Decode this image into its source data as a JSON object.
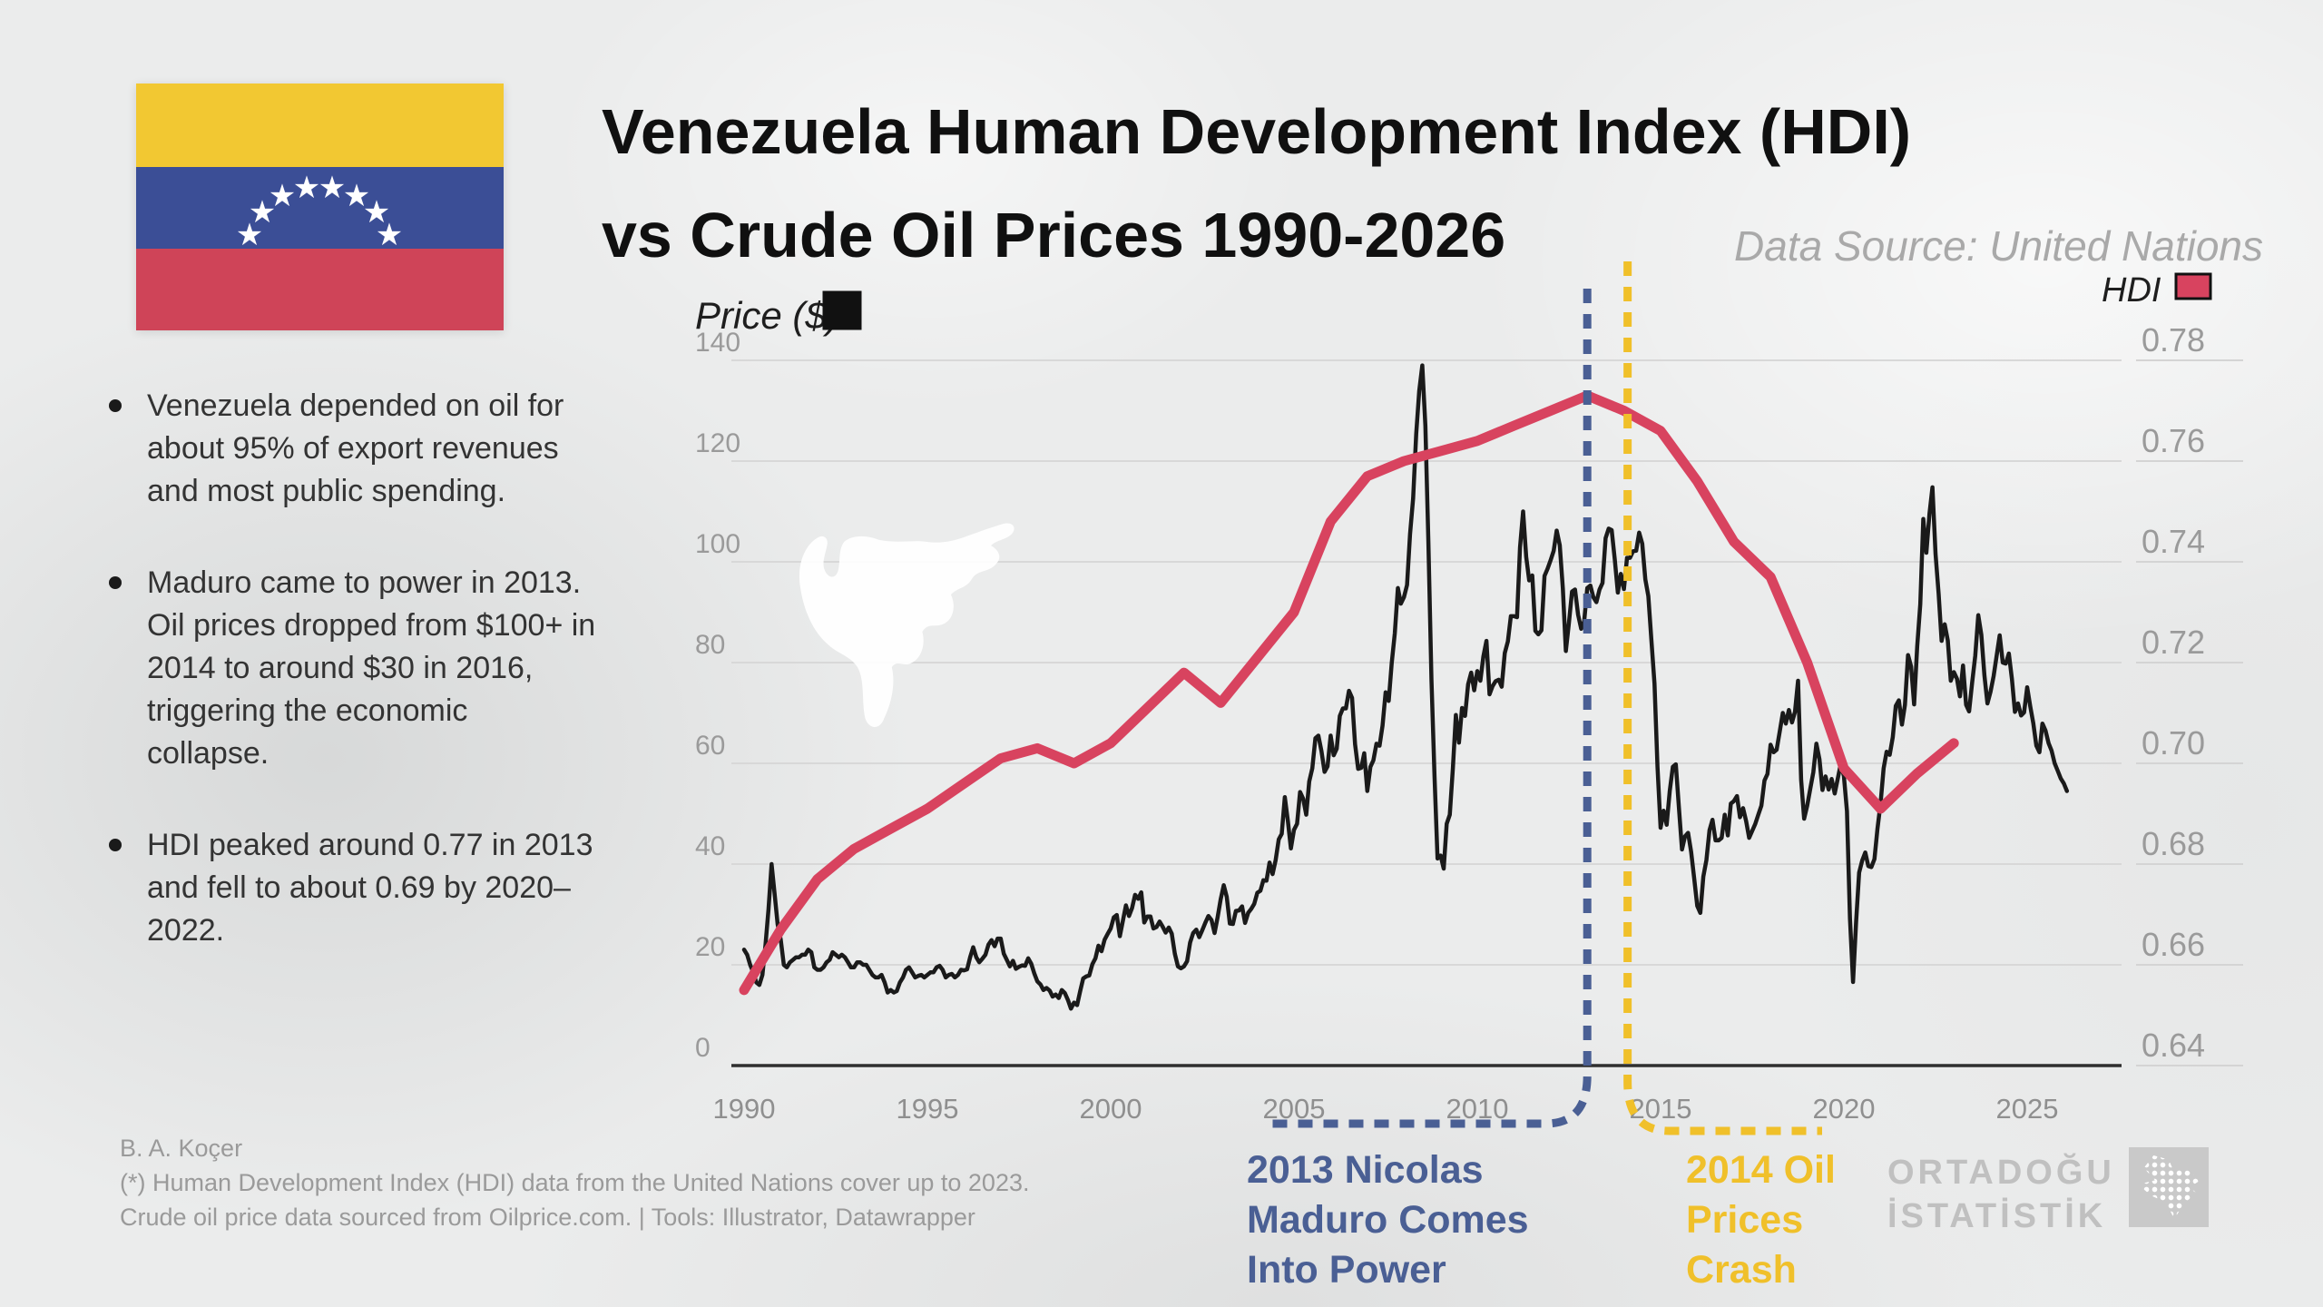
{
  "title": {
    "line1": "Venezuela Human Development Index (HDI)",
    "line2": "vs Crude Oil Prices 1990-2026",
    "data_source": "Data Source: United Nations"
  },
  "flag": {
    "country": "Venezuela",
    "colors": {
      "yellow": "#f2c832",
      "blue": "#3b4e96",
      "red": "#cf4458"
    },
    "stars": 8
  },
  "bullets": [
    "Venezuela depended on oil for about 95% of export revenues and most public spending.",
    "Maduro came to power in 2013. Oil prices dropped from $100+ in 2014 to around $30 in 2016, triggering the economic collapse.",
    "HDI peaked around 0.77 in 2013 and fell to about 0.69 by 2020–2022."
  ],
  "legend": {
    "price_label": "Price ($)",
    "price_color": "#111111",
    "hdi_label": "HDI",
    "hdi_color": "#d8435f"
  },
  "annotations": {
    "maduro": {
      "text": "2013 Nicolas\nMaduro Comes\nInto Power",
      "color": "#4a5f94"
    },
    "oil_crash": {
      "text": "2014 Oil\nPrices\nCrash",
      "color": "#f0c02a"
    }
  },
  "footer": {
    "line1": "B. A. Koçer",
    "line2": "(*) Human Development Index (HDI) data from the United Nations cover up to 2023.",
    "line3": "Crude oil price data sourced from Oilprice.com. | Tools: Illustrator, Datawrapper"
  },
  "logo": {
    "line1": "ORTADOĞU",
    "line2": "İSTATİSTİK"
  },
  "chart_data": {
    "type": "line",
    "title": "Venezuela Human Development Index (HDI) vs Crude Oil Prices 1990-2026",
    "grid": true,
    "x_axis": {
      "labels": [
        "1990",
        "1995",
        "2000",
        "2005",
        "2010",
        "2015",
        "2020",
        "2025"
      ],
      "range": [
        1989.7,
        2026.8
      ]
    },
    "y_left": {
      "title": "Price ($)",
      "labels": [
        "0",
        "20",
        "40",
        "60",
        "80",
        "100",
        "120",
        "140"
      ],
      "range": [
        0,
        140
      ]
    },
    "y_right": {
      "title": "HDI",
      "labels": [
        "0.64",
        "0.66",
        "0.68",
        "0.70",
        "0.72",
        "0.74",
        "0.76",
        "0.78"
      ],
      "range": [
        0.64,
        0.78
      ]
    },
    "events": [
      {
        "year": 2013,
        "side": "left",
        "color": "#4a5f94",
        "label": "2013 Nicolas Maduro Comes Into Power"
      },
      {
        "year": 2014.1,
        "side": "right",
        "color": "#f0c02a",
        "label": "2014 Oil Prices Crash"
      }
    ],
    "series": [
      {
        "name": "Crude Oil Price ($)",
        "axis": "left",
        "color": "#1a1a1a",
        "start_year": 1990,
        "points_per_year": 12,
        "values": [
          23,
          22,
          20,
          18.5,
          16.5,
          16,
          18,
          24,
          31,
          40,
          34,
          28,
          25,
          20,
          19.5,
          20.5,
          21,
          21.5,
          21.5,
          22,
          22,
          23,
          22.5,
          19.5,
          19,
          19,
          19.5,
          20.5,
          21,
          22.5,
          22,
          21.5,
          22,
          21.5,
          20.5,
          19.5,
          19.5,
          20.5,
          20.5,
          20,
          20,
          19,
          18,
          17.5,
          17.5,
          18,
          16.5,
          14.5,
          15,
          14.5,
          14.8,
          16.5,
          17.5,
          19,
          19.5,
          18.5,
          17.5,
          17.8,
          18,
          17.5,
          18,
          18.5,
          18.5,
          19.5,
          19.8,
          19,
          17.5,
          18,
          18.2,
          17.5,
          18,
          19,
          18.9,
          19.1,
          21.5,
          23.5,
          21.5,
          20.5,
          21.2,
          22,
          24,
          24.9,
          23.7,
          25.2,
          25.2,
          22.2,
          21,
          19.7,
          20.8,
          19.2,
          19.6,
          19.9,
          19.8,
          21.3,
          20.2,
          18.3,
          16.7,
          16.1,
          15,
          15.4,
          14.9,
          13.7,
          14.1,
          13.4,
          15,
          14.4,
          13,
          11.3,
          12.5,
          12,
          14.7,
          17.3,
          17.7,
          17.9,
          20.1,
          21.3,
          23.8,
          22.7,
          25,
          26.1,
          27.2,
          29.4,
          29.9,
          25.7,
          28.8,
          31.8,
          29.7,
          31.3,
          33.9,
          33.1,
          34.4,
          28.4,
          29.6,
          29.6,
          27.2,
          27.5,
          28.6,
          27.6,
          26.4,
          27.4,
          26.2,
          22.2,
          19.7,
          19.3,
          19.7,
          20.7,
          24.4,
          26.3,
          27,
          25.5,
          26.9,
          28.4,
          29.7,
          28.9,
          26.3,
          29.4,
          33,
          35.8,
          33.5,
          28.2,
          28.1,
          30.7,
          30.8,
          31.6,
          28.3,
          30.3,
          31.1,
          32.1,
          34.3,
          34.7,
          36.8,
          36.7,
          40.3,
          38,
          40.8,
          44.9,
          46,
          53.3,
          48.5,
          43.1,
          46.8,
          48,
          54.3,
          53,
          49.8,
          56.4,
          59,
          65,
          65.5,
          62.4,
          58.3,
          59.4,
          65.5,
          61.6,
          62.9,
          69.4,
          70.9,
          70.9,
          74.4,
          73,
          63.8,
          58.9,
          59.1,
          62,
          54.5,
          59.3,
          60.6,
          63.9,
          63.5,
          67.5,
          74.1,
          72.4,
          79.9,
          85.8,
          94.8,
          91.7,
          93,
          95.4,
          105.5,
          112.6,
          125.4,
          133.9,
          139,
          127,
          104,
          76.6,
          57.3,
          41.1,
          41.7,
          39.1,
          48,
          49.8,
          59,
          69.6,
          64.1,
          71,
          69.4,
          75.7,
          78,
          74.5,
          78.3,
          76.4,
          81.2,
          84.3,
          73.7,
          75.3,
          76.3,
          76.6,
          75.2,
          81.9,
          84.2,
          89.2,
          89.2,
          89,
          102.9,
          110,
          101,
          96.3,
          97.3,
          86.3,
          85.6,
          86.4,
          97.2,
          98.6,
          100.3,
          102.2,
          106.2,
          103.3,
          94.7,
          82.3,
          87.9,
          94.1,
          94.5,
          89.5,
          86.7,
          88.2,
          94.8,
          95.3,
          93,
          92,
          94.5,
          95.8,
          104.7,
          106.6,
          106.3,
          100.5,
          93.9,
          97.6,
          94.6,
          100.8,
          100.8,
          102.1,
          102.2,
          105.8,
          103.6,
          96.5,
          93.2,
          84.4,
          75.8,
          59.3,
          47.2,
          50.6,
          47.8,
          54.5,
          59.3,
          59.8,
          51.2,
          42.9,
          45.5,
          46.2,
          42.4,
          37.2,
          31.7,
          30.3,
          37.5,
          40.8,
          46.7,
          48.8,
          44.7,
          44.7,
          45.2,
          49.8,
          45.7,
          52,
          52.5,
          53.5,
          49.3,
          51.1,
          48.5,
          45.2,
          46.6,
          48,
          49.8,
          51.6,
          56.6,
          57.9,
          63.7,
          62.2,
          62.7,
          66.3,
          70,
          67.9,
          70.6,
          68.1,
          70.2,
          76.4,
          56.7,
          49,
          51.6,
          55,
          58.2,
          63.9,
          60.8,
          54.7,
          57.4,
          54.8,
          56.9,
          54,
          57,
          59.9,
          57.5,
          50.5,
          29.2,
          16.6,
          28.6,
          38.3,
          40.7,
          42.3,
          39.6,
          39.4,
          41,
          47,
          52,
          59,
          62.3,
          61.7,
          65.2,
          71.4,
          72.5,
          67.7,
          71.6,
          81.5,
          79.2,
          71.7,
          83.2,
          91.6,
          108.5,
          101.8,
          109.5,
          114.8,
          101.6,
          93.7,
          84.3,
          87.6,
          84.4,
          76.4,
          78.1,
          76.8,
          73.3,
          79.4,
          71.6,
          70.3,
          76.1,
          81.4,
          89.4,
          85.5,
          77.4,
          71.9,
          74.2,
          77.3,
          81.3,
          85.4,
          80,
          79.8,
          81.8,
          76.7,
          70.2,
          71.9,
          69.5,
          70.1,
          75.1,
          71.3,
          68,
          63.5,
          62.2,
          67.9,
          66.5,
          64,
          62.5,
          60,
          58.5,
          57,
          56,
          54.5
        ]
      },
      {
        "name": "HDI",
        "axis": "right",
        "color": "#d8435f",
        "start_year": 1990,
        "points_per_year": 1,
        "values": [
          0.655,
          0.667,
          0.677,
          0.683,
          0.687,
          0.691,
          0.696,
          0.701,
          0.703,
          0.7,
          0.704,
          0.711,
          0.718,
          0.712,
          0.721,
          0.73,
          0.748,
          0.757,
          0.76,
          0.762,
          0.764,
          0.767,
          0.77,
          0.773,
          0.77,
          0.766,
          0.756,
          0.744,
          0.737,
          0.72,
          0.699,
          0.691,
          0.698,
          0.704
        ]
      }
    ]
  }
}
